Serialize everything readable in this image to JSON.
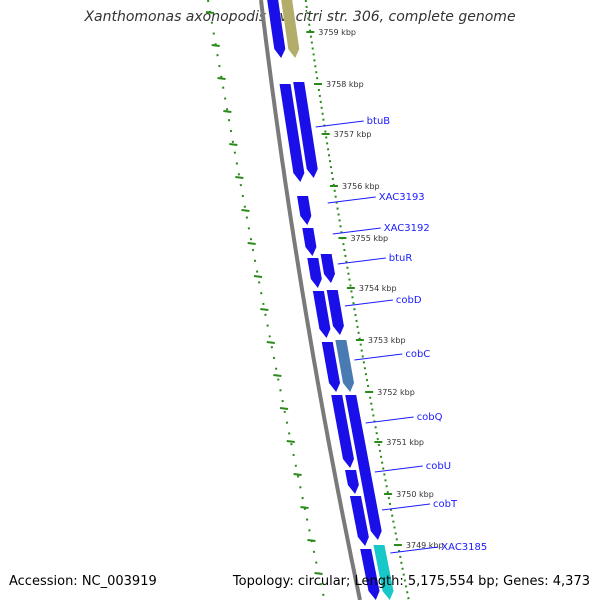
{
  "title": "Xanthomonas axonopodis pv. citri str. 306, complete genome",
  "footer": {
    "accession": "Accession: NC_003919",
    "summary": "Topology: circular; Length: 5,175,554 bp; Genes: 4,373"
  },
  "colors": {
    "gene_default": "#1a0fe8",
    "gene_olive": "#b2ad6a",
    "gene_steel": "#4a7ab2",
    "gene_cyan": "#18c8c8",
    "backbone": "#7a7a7a",
    "tick_green": "#2a8a1a",
    "label_blue": "#1a1aff",
    "kbp_label": "#333333"
  },
  "ticks": [
    {
      "label": "3759 kbp"
    },
    {
      "label": "3758 kbp"
    },
    {
      "label": "3757 kbp"
    },
    {
      "label": "3756 kbp"
    },
    {
      "label": "3755 kbp"
    },
    {
      "label": "3754 kbp"
    },
    {
      "label": "3753 kbp"
    },
    {
      "label": "3752 kbp"
    },
    {
      "label": "3751 kbp"
    },
    {
      "label": "3750 kbp"
    },
    {
      "label": "3749 kbp"
    }
  ],
  "gene_labels": [
    {
      "label": "btuB"
    },
    {
      "label": "XAC3193"
    },
    {
      "label": "XAC3192"
    },
    {
      "label": "btuR"
    },
    {
      "label": "cobD"
    },
    {
      "label": "cobC"
    },
    {
      "label": "cobQ"
    },
    {
      "label": "cobU"
    },
    {
      "label": "cobT"
    },
    {
      "label": "XAC3185"
    }
  ]
}
